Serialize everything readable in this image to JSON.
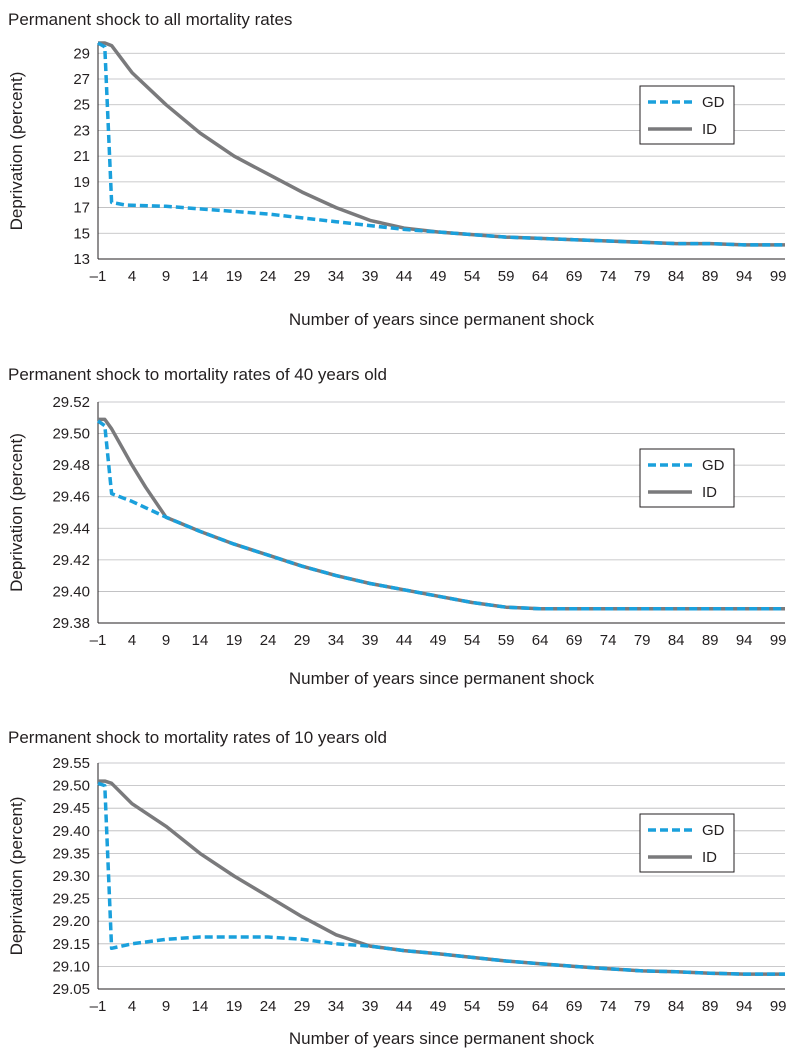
{
  "chart_data": [
    {
      "type": "line",
      "title": "Permanent shock to all mortality rates",
      "xlabel": "Number of years since permanent shock",
      "ylabel": "Deprivation (percent)",
      "xlim": [
        -1,
        100
      ],
      "ylim": [
        13,
        29.8
      ],
      "xticks": [
        -1,
        4,
        9,
        14,
        19,
        24,
        29,
        34,
        39,
        44,
        49,
        54,
        59,
        64,
        69,
        74,
        79,
        84,
        89,
        94,
        99
      ],
      "xtick_labels": [
        "–1",
        "4",
        "9",
        "14",
        "19",
        "24",
        "29",
        "34",
        "39",
        "44",
        "49",
        "54",
        "59",
        "64",
        "69",
        "74",
        "79",
        "84",
        "89",
        "94",
        "99"
      ],
      "yticks": [
        13,
        15,
        17,
        19,
        21,
        23,
        25,
        27,
        29
      ],
      "ytick_labels": [
        "13",
        "15",
        "17",
        "19",
        "21",
        "23",
        "25",
        "27",
        "29"
      ],
      "grid": true,
      "legend": "right",
      "series": [
        {
          "name": "GD",
          "color": "#1aa0dc",
          "dash": true,
          "x": [
            -1,
            0,
            1,
            3,
            9,
            14,
            19,
            24,
            29,
            34,
            39,
            44,
            49,
            54,
            59,
            64,
            69,
            74,
            79,
            84,
            89,
            94,
            100
          ],
          "y": [
            29.8,
            29.5,
            17.4,
            17.2,
            17.1,
            16.9,
            16.7,
            16.5,
            16.2,
            15.9,
            15.6,
            15.3,
            15.1,
            14.9,
            14.7,
            14.6,
            14.5,
            14.4,
            14.3,
            14.2,
            14.2,
            14.1,
            14.1
          ]
        },
        {
          "name": "ID",
          "color": "#7a7a7c",
          "dash": false,
          "x": [
            -1,
            0,
            1,
            4,
            9,
            14,
            19,
            24,
            29,
            34,
            39,
            44,
            49,
            54,
            59,
            64,
            69,
            74,
            79,
            84,
            89,
            94,
            100
          ],
          "y": [
            29.8,
            29.8,
            29.6,
            27.5,
            25.0,
            22.8,
            21.0,
            19.6,
            18.2,
            17.0,
            16.0,
            15.4,
            15.1,
            14.9,
            14.7,
            14.6,
            14.5,
            14.4,
            14.3,
            14.2,
            14.2,
            14.1,
            14.1
          ]
        }
      ]
    },
    {
      "type": "line",
      "title": "Permanent shock to mortality rates of 40 years old",
      "xlabel": "Number of years since permanent shock",
      "ylabel": "Deprivation (percent)",
      "xlim": [
        -1,
        100
      ],
      "ylim": [
        29.38,
        29.52
      ],
      "xticks": [
        -1,
        4,
        9,
        14,
        19,
        24,
        29,
        34,
        39,
        44,
        49,
        54,
        59,
        64,
        69,
        74,
        79,
        84,
        89,
        94,
        99
      ],
      "xtick_labels": [
        "–1",
        "4",
        "9",
        "14",
        "19",
        "24",
        "29",
        "34",
        "39",
        "44",
        "49",
        "54",
        "59",
        "64",
        "69",
        "74",
        "79",
        "84",
        "89",
        "94",
        "99"
      ],
      "yticks": [
        29.38,
        29.4,
        29.42,
        29.44,
        29.46,
        29.48,
        29.5,
        29.52
      ],
      "ytick_labels": [
        "29.38",
        "29.40",
        "29.42",
        "29.44",
        "29.46",
        "29.48",
        "29.50",
        "29.52"
      ],
      "grid": true,
      "legend": "right",
      "series": [
        {
          "name": "GD",
          "color": "#1aa0dc",
          "dash": true,
          "x": [
            -1,
            0,
            1,
            4,
            9,
            14,
            19,
            24,
            29,
            34,
            39,
            44,
            49,
            54,
            59,
            64,
            69,
            74,
            79,
            84,
            89,
            94,
            100
          ],
          "y": [
            29.508,
            29.505,
            29.462,
            29.457,
            29.447,
            29.438,
            29.43,
            29.423,
            29.416,
            29.41,
            29.405,
            29.401,
            29.397,
            29.393,
            29.39,
            29.389,
            29.389,
            29.389,
            29.389,
            29.389,
            29.389,
            29.389,
            29.389
          ]
        },
        {
          "name": "ID",
          "color": "#7a7a7c",
          "dash": false,
          "x": [
            -1,
            0,
            1,
            4,
            6,
            9,
            14,
            19,
            24,
            29,
            34,
            39,
            44,
            49,
            54,
            59,
            64,
            69,
            74,
            79,
            84,
            89,
            94,
            100
          ],
          "y": [
            29.509,
            29.509,
            29.503,
            29.48,
            29.466,
            29.447,
            29.438,
            29.43,
            29.423,
            29.416,
            29.41,
            29.405,
            29.401,
            29.397,
            29.393,
            29.39,
            29.389,
            29.389,
            29.389,
            29.389,
            29.389,
            29.389,
            29.389,
            29.389
          ]
        }
      ]
    },
    {
      "type": "line",
      "title": "Permanent shock to mortality rates of 10 years old",
      "xlabel": "Number of years since permanent shock",
      "ylabel": "Deprivation (percent)",
      "xlim": [
        -1,
        100
      ],
      "ylim": [
        29.05,
        29.55
      ],
      "xticks": [
        -1,
        4,
        9,
        14,
        19,
        24,
        29,
        34,
        39,
        44,
        49,
        54,
        59,
        64,
        69,
        74,
        79,
        84,
        89,
        94,
        99
      ],
      "xtick_labels": [
        "–1",
        "4",
        "9",
        "14",
        "19",
        "24",
        "29",
        "34",
        "39",
        "44",
        "49",
        "54",
        "59",
        "64",
        "69",
        "74",
        "79",
        "84",
        "89",
        "94",
        "99"
      ],
      "yticks": [
        29.05,
        29.1,
        29.15,
        29.2,
        29.25,
        29.3,
        29.35,
        29.4,
        29.45,
        29.5,
        29.55
      ],
      "ytick_labels": [
        "29.05",
        "29.10",
        "29.15",
        "29.20",
        "29.25",
        "29.30",
        "29.35",
        "29.40",
        "29.45",
        "29.50",
        "29.55"
      ],
      "grid": true,
      "legend": "right",
      "series": [
        {
          "name": "GD",
          "color": "#1aa0dc",
          "dash": true,
          "x": [
            -1,
            0,
            1,
            4,
            9,
            14,
            19,
            24,
            29,
            34,
            39,
            44,
            49,
            54,
            59,
            64,
            69,
            74,
            79,
            84,
            89,
            94,
            100
          ],
          "y": [
            29.505,
            29.5,
            29.14,
            29.15,
            29.16,
            29.165,
            29.165,
            29.165,
            29.16,
            29.15,
            29.145,
            29.135,
            29.128,
            29.12,
            29.112,
            29.106,
            29.1,
            29.095,
            29.09,
            29.088,
            29.085,
            29.083,
            29.083
          ]
        },
        {
          "name": "ID",
          "color": "#7a7a7c",
          "dash": false,
          "x": [
            -1,
            0,
            1,
            4,
            9,
            14,
            19,
            24,
            29,
            34,
            39,
            44,
            49,
            54,
            59,
            64,
            69,
            74,
            79,
            84,
            89,
            94,
            100
          ],
          "y": [
            29.51,
            29.51,
            29.505,
            29.46,
            29.41,
            29.35,
            29.3,
            29.255,
            29.21,
            29.17,
            29.145,
            29.135,
            29.128,
            29.12,
            29.112,
            29.106,
            29.1,
            29.095,
            29.09,
            29.088,
            29.085,
            29.083,
            29.083
          ]
        }
      ]
    }
  ]
}
